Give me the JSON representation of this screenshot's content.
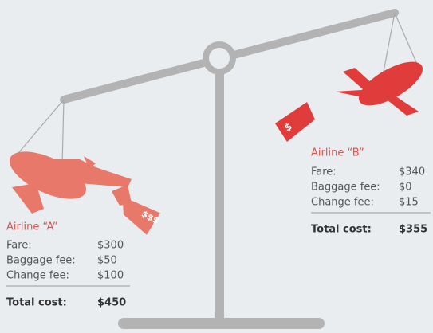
{
  "airlines": [
    {
      "name": "Airline “A”",
      "rows": [
        [
          "Fare:",
          "$300"
        ],
        [
          "Baggage fee:",
          "$50"
        ],
        [
          "Change fee:",
          "$100"
        ]
      ],
      "total": [
        "Total cost:",
        "$450"
      ]
    },
    {
      "name": "Airline “B”",
      "rows": [
        [
          "Fare:",
          "$340"
        ],
        [
          "Baggage fee:",
          "$0"
        ],
        [
          "Change fee:",
          "$15"
        ]
      ],
      "total": [
        "Total cost:",
        "$355"
      ]
    }
  ]
}
